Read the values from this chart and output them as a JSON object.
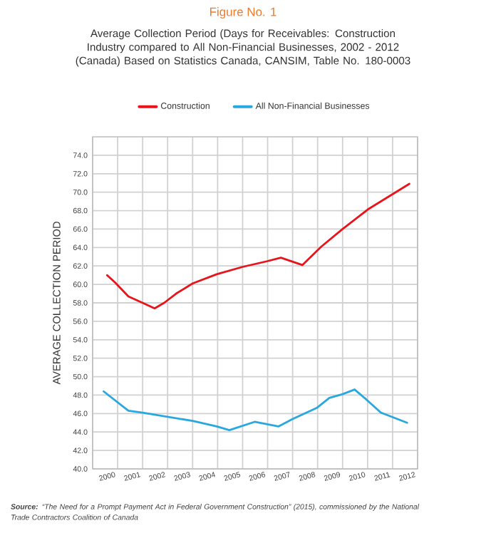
{
  "chart_data": {
    "type": "line",
    "title": "Figure No. 1",
    "subtitle": "Average Collection Period (Days for Receivables: Construction Industry compared to All Non-Financial Businesses, 2002 - 2012 (Canada) Based on Statistics Canada, CANSIM, Table No. 180-0003",
    "ylabel": "AVERAGE COLLECTION PERIOD",
    "xlim": [
      1999.5,
      2012.5
    ],
    "xticks": [
      2000,
      2001,
      2002,
      2003,
      2004,
      2005,
      2006,
      2007,
      2008,
      2009,
      2010,
      2011,
      2012
    ],
    "ylim": [
      40,
      76
    ],
    "yticks": [
      {
        "value": 40,
        "label": "40.0"
      },
      {
        "value": 42,
        "label": "42.0"
      },
      {
        "value": 44,
        "label": "44.0"
      },
      {
        "value": 46,
        "label": "46.0"
      },
      {
        "value": 48,
        "label": "48.0"
      },
      {
        "value": 50,
        "label": "50.0"
      },
      {
        "value": 52,
        "label": "52.0"
      },
      {
        "value": 54,
        "label": "54.0"
      },
      {
        "value": 56,
        "label": "56.0"
      },
      {
        "value": 58,
        "label": "58.0"
      },
      {
        "value": 60,
        "label": "60.0"
      },
      {
        "value": 62,
        "label": "62.0"
      },
      {
        "value": 64,
        "label": "64.0"
      },
      {
        "value": 66,
        "label": "66.0"
      },
      {
        "value": 68,
        "label": "68.0"
      },
      {
        "value": 70,
        "label": "70.0"
      },
      {
        "value": 72,
        "label": "72.0"
      },
      {
        "value": 74,
        "label": "74.0"
      }
    ],
    "grid": true,
    "legend": "top",
    "line_style": "solid",
    "series": [
      {
        "name": "Construction",
        "color": "#e8141c",
        "x": [
          2000.08,
          2000.4,
          2000.93,
          2001.5,
          2001.98,
          2002.36,
          2002.84,
          2003.5,
          2004.46,
          2005.5,
          2006.46,
          2007.03,
          2007.89,
          2008.65,
          2009.5,
          2010.55,
          2012.17
        ],
        "values": [
          61.0,
          60.2,
          58.7,
          58.0,
          57.4,
          58.0,
          59.0,
          60.1,
          61.1,
          61.9,
          62.5,
          62.9,
          62.1,
          64.1,
          66.0,
          68.2,
          70.9
        ]
      },
      {
        "name": "All Non-Financial Businesses",
        "color": "#29a8e0",
        "x": [
          1999.94,
          2000.93,
          2001.5,
          2003.5,
          2004.46,
          2004.97,
          2005.98,
          2006.93,
          2007.5,
          2008.46,
          2008.97,
          2009.5,
          2009.98,
          2010.46,
          2011.03,
          2012.08
        ],
        "values": [
          48.4,
          46.3,
          46.1,
          45.2,
          44.6,
          44.2,
          45.1,
          44.6,
          45.4,
          46.6,
          47.7,
          48.1,
          48.6,
          47.5,
          46.1,
          45.0
        ]
      }
    ],
    "annotations": [
      "**Source:** “The Need for a Prompt Payment Act in Federal Government Construction” (2015), commissioned by the National Trade Contractors Coalition of Canada"
    ]
  }
}
